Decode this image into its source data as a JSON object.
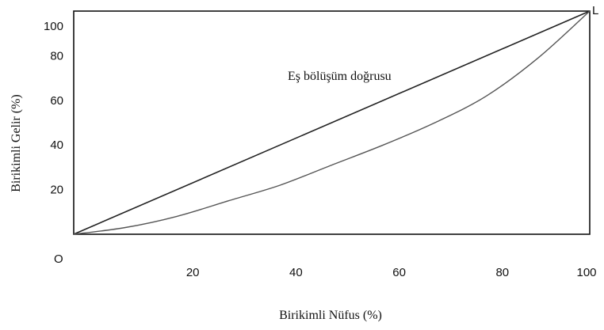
{
  "chart_data": {
    "type": "line",
    "xlabel": "Birikimli Nüfus (%)",
    "ylabel": "Birikimli Gelir (%)",
    "xlim": [
      0,
      100
    ],
    "ylim": [
      0,
      100
    ],
    "x_ticks": [
      "20",
      "40",
      "60",
      "80",
      "100"
    ],
    "y_ticks": [
      "20",
      "40",
      "60",
      "80",
      "100"
    ],
    "x_tick_values": [
      20,
      40,
      60,
      80,
      100
    ],
    "y_tick_values": [
      20,
      40,
      60,
      80,
      100
    ],
    "origin_label": "O",
    "corner_label": "L",
    "grid": false,
    "series": [
      {
        "x": [
          0,
          100
        ],
        "y": [
          0,
          100
        ]
      },
      {
        "x": [
          0,
          10,
          20,
          30,
          40,
          50,
          60,
          70,
          80,
          90,
          100
        ],
        "y": [
          0,
          3,
          8,
          15,
          22,
          31,
          40,
          50,
          62,
          79,
          100
        ]
      }
    ],
    "annotations": [
      {
        "text": "Eş bölüşüm doğrusu",
        "x": 50,
        "y": 70
      }
    ]
  }
}
